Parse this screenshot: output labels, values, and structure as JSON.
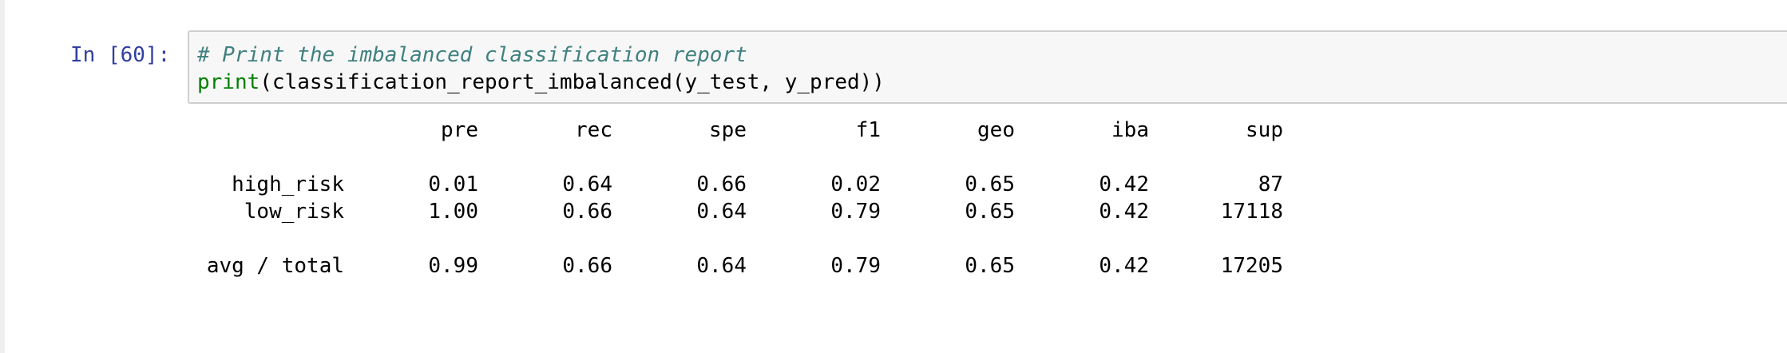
{
  "cell": {
    "prompt": "In [60]:",
    "code": {
      "comment": "# Print the imbalanced classification report",
      "print_keyword": "print",
      "call_rest": "(classification_report_imbalanced(y_test, y_pred))"
    }
  },
  "output": {
    "header": [
      "pre",
      "rec",
      "spe",
      "f1",
      "geo",
      "iba",
      "sup"
    ],
    "rows": [
      {
        "label": "high_risk",
        "values": [
          "0.01",
          "0.64",
          "0.66",
          "0.02",
          "0.65",
          "0.42",
          "87"
        ]
      },
      {
        "label": "low_risk",
        "values": [
          "1.00",
          "0.66",
          "0.64",
          "0.79",
          "0.65",
          "0.42",
          "17118"
        ]
      }
    ],
    "total": {
      "label": "avg / total",
      "values": [
        "0.99",
        "0.66",
        "0.64",
        "0.79",
        "0.65",
        "0.42",
        "17205"
      ]
    }
  },
  "colors": {
    "prompt": "#303f9f",
    "comment": "#408080",
    "builtin": "#008000",
    "input_background": "#f7f7f7",
    "input_border": "#cfcfcf"
  }
}
